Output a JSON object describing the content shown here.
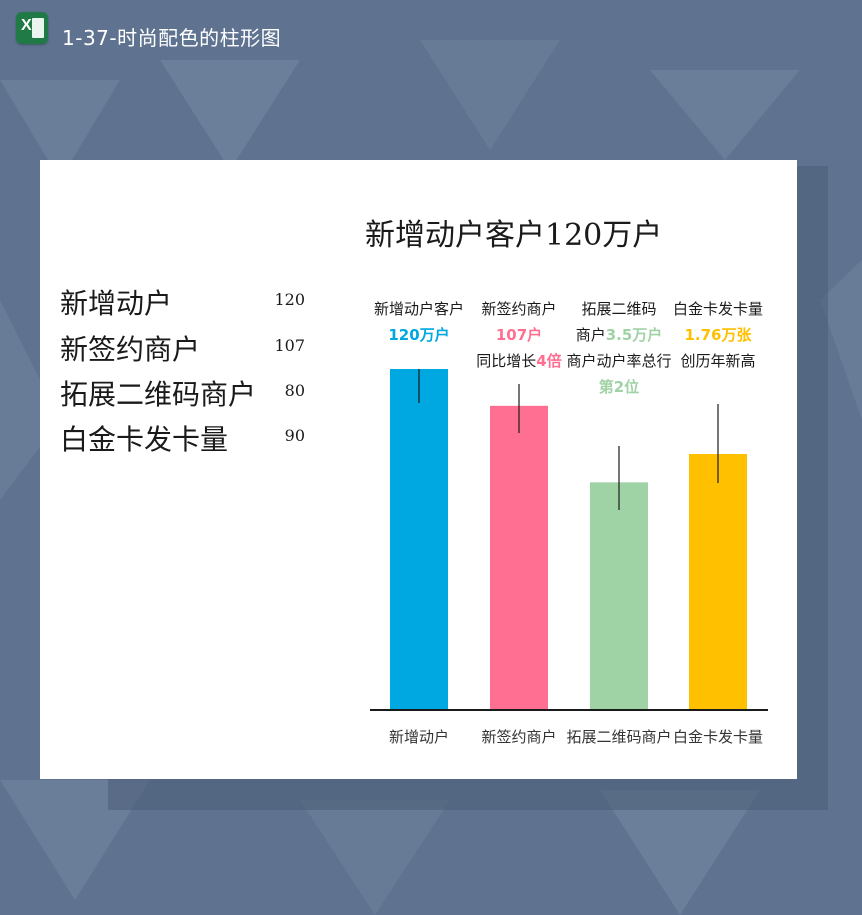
{
  "window": {
    "app_icon": "excel-icon",
    "title": "1-37-时尚配色的柱形图"
  },
  "legend_table": [
    {
      "name": "新增动户",
      "value": "120"
    },
    {
      "name": "新签约商户",
      "value": "107"
    },
    {
      "name": "拓展二维码商户",
      "value": "80"
    },
    {
      "name": "白金卡发卡量",
      "value": "90"
    }
  ],
  "chart_data": {
    "type": "bar",
    "title": "新增动户客户120万户",
    "categories": [
      "新增动户",
      "新签约商户",
      "拓展二维码商户",
      "白金卡发卡量"
    ],
    "values": [
      120,
      107,
      80,
      90
    ],
    "colors": [
      "#00a8e1",
      "#ff6f91",
      "#9fd3a6",
      "#ffc000"
    ],
    "ylim": [
      0,
      120
    ],
    "grid": false,
    "annotations": [
      {
        "lines": [
          [
            {
              "t": "新增动户客户",
              "c": "#1a1a1a"
            }
          ],
          [
            {
              "t": "120万户",
              "c": "#00a8e1"
            }
          ]
        ]
      },
      {
        "lines": [
          [
            {
              "t": "新签约商户",
              "c": "#1a1a1a"
            }
          ],
          [
            {
              "t": "107户",
              "c": "#ff6f91"
            }
          ],
          [
            {
              "t": "同比增长",
              "c": "#1a1a1a"
            },
            {
              "t": "4倍",
              "c": "#ff6f91"
            }
          ]
        ]
      },
      {
        "lines": [
          [
            {
              "t": "拓展二维码",
              "c": "#1a1a1a"
            }
          ],
          [
            {
              "t": "商户",
              "c": "#1a1a1a"
            },
            {
              "t": "3.5万户",
              "c": "#9fd3a6"
            }
          ],
          [
            {
              "t": "商户动户率总行",
              "c": "#1a1a1a"
            }
          ],
          [
            {
              "t": "第2位",
              "c": "#9fd3a6"
            }
          ]
        ]
      },
      {
        "lines": [
          [
            {
              "t": "白金卡发卡量",
              "c": "#1a1a1a"
            }
          ],
          [
            {
              "t": "1.76万张",
              "c": "#ffc000"
            }
          ],
          [
            {
              "t": "创历年新高",
              "c": "#1a1a1a"
            }
          ]
        ]
      }
    ]
  }
}
